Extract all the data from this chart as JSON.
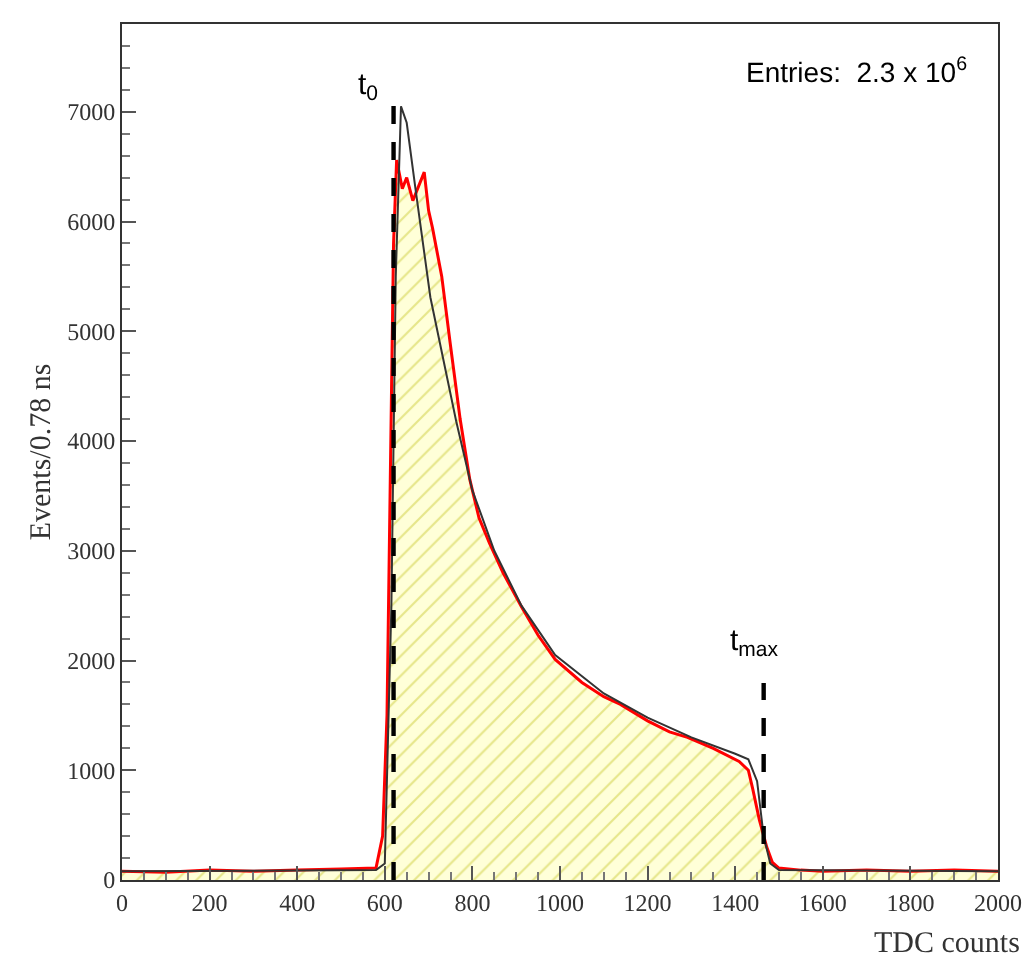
{
  "chart_data": {
    "type": "area",
    "xlabel": "TDC counts",
    "ylabel": "Events/0.78 ns",
    "annotations": [
      "Entries:  2.3 x 10$^{6}$"
    ],
    "series": [
      {
        "type": "area",
        "color": "#ff0000",
        "x": [
          0,
          100,
          200,
          300,
          400,
          500,
          580,
          595,
          605,
          612,
          620,
          627,
          640,
          650,
          664,
          675,
          690,
          700,
          709,
          730,
          749,
          772,
          794,
          815,
          839,
          870,
          912,
          950,
          989,
          1050,
          1100,
          1138,
          1200,
          1250,
          1291,
          1350,
          1409,
          1430,
          1440,
          1455,
          1472,
          1485,
          1499,
          1550,
          1600,
          1700,
          1800,
          1900,
          2000
        ],
        "values": [
          80,
          70,
          90,
          80,
          90,
          100,
          110,
          400,
          1500,
          3500,
          5800,
          6560,
          6300,
          6400,
          6190,
          6300,
          6450,
          6100,
          5940,
          5500,
          4900,
          4200,
          3650,
          3300,
          3070,
          2800,
          2490,
          2230,
          2010,
          1800,
          1670,
          1600,
          1450,
          1350,
          1300,
          1200,
          1080,
          1000,
          830,
          550,
          300,
          160,
          110,
          90,
          80,
          90,
          80,
          90,
          80
        ]
      },
      {
        "type": "line",
        "color": "#333333",
        "x": [
          0,
          580,
          600,
          615,
          625,
          637,
          650,
          670,
          704,
          763,
          800,
          850,
          912,
          989,
          1100,
          1200,
          1300,
          1400,
          1430,
          1450,
          1465,
          1480,
          1500,
          2000
        ],
        "values": [
          80,
          90,
          150,
          2500,
          5500,
          7050,
          6900,
          6300,
          5310,
          4180,
          3550,
          3000,
          2500,
          2050,
          1700,
          1480,
          1300,
          1150,
          1100,
          900,
          400,
          150,
          90,
          80
        ]
      }
    ],
    "xlim": [
      0,
      2000
    ],
    "xticks": [
      0,
      200,
      400,
      600,
      800,
      1000,
      1200,
      1400,
      1600,
      1800,
      2000
    ],
    "ylim": [
      0,
      7800
    ],
    "yticks": [
      0,
      1000,
      2000,
      3000,
      4000,
      5000,
      6000,
      7000
    ],
    "ref_lines": [
      {
        "axis": "x",
        "value": 620,
        "label": "t$_{0}$",
        "line_style": "dashed",
        "color": "#000000"
      },
      {
        "axis": "x",
        "value": 1465,
        "label": "t$_{max}$",
        "line_style": "dashed",
        "color": "#000000"
      }
    ],
    "grid": false
  }
}
